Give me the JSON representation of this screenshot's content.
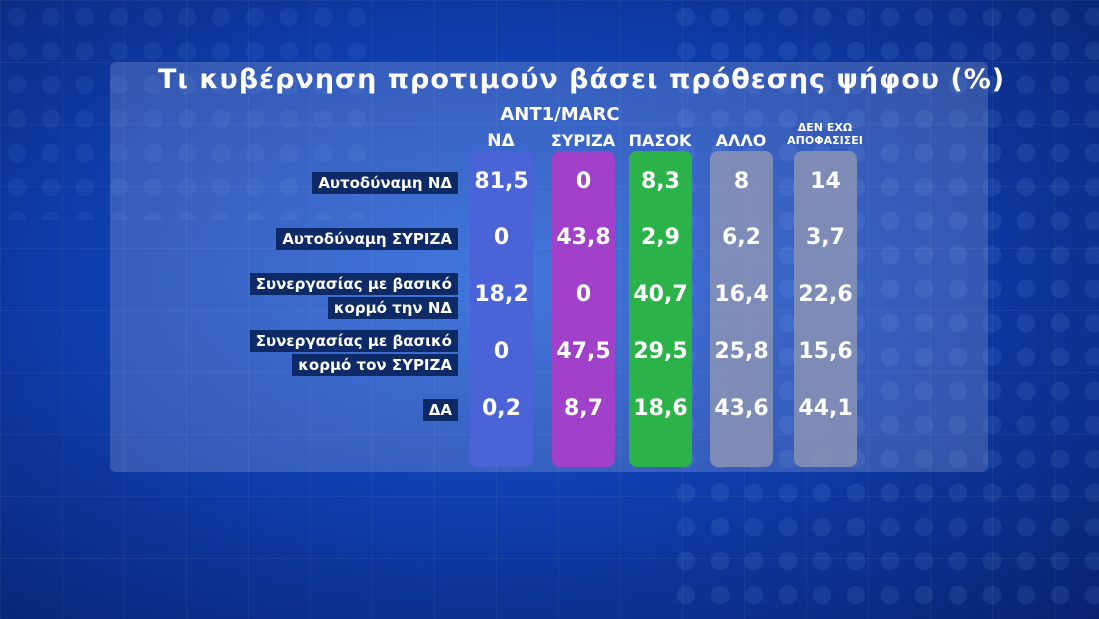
{
  "title": "Τι κυβέρνηση προτιμούν βάσει πρόθεσης ψήφου (%)",
  "source": "ANT1/MARC",
  "colors": {
    "nd": "#4a63d6",
    "syriza": "#a140c8",
    "pasok": "#2bb34a",
    "other": "#8a93b5",
    "undecided": "#8a93b5"
  },
  "chart_data": {
    "type": "table",
    "title": "Τι κυβέρνηση προτιμούν βάσει πρόθεσης ψήφου (%)",
    "columns": [
      "ΝΔ",
      "ΣΥΡΙΖΑ",
      "ΠΑΣΟΚ",
      "ΑΛΛΟ",
      "ΔΕΝ ΕΧΩ ΑΠΟΦΑΣΙΣΕΙ"
    ],
    "rows": [
      {
        "label": [
          "Αυτοδύναμη ΝΔ"
        ],
        "values": [
          "81,5",
          "0",
          "8,3",
          "8",
          "14"
        ]
      },
      {
        "label": [
          "Αυτοδύναμη ΣΥΡΙΖΑ"
        ],
        "values": [
          "0",
          "43,8",
          "2,9",
          "6,2",
          "3,7"
        ]
      },
      {
        "label": [
          "Συνεργασίας με βασικό",
          "κορμό την ΝΔ"
        ],
        "values": [
          "18,2",
          "0",
          "40,7",
          "16,4",
          "22,6"
        ]
      },
      {
        "label": [
          "Συνεργασίας με βασικό",
          "κορμό τον ΣΥΡΙΖΑ"
        ],
        "values": [
          "0",
          "47,5",
          "29,5",
          "25,8",
          "15,6"
        ]
      },
      {
        "label": [
          "ΔΑ"
        ],
        "values": [
          "0,2",
          "8,7",
          "18,6",
          "43,6",
          "44,1"
        ]
      }
    ]
  }
}
